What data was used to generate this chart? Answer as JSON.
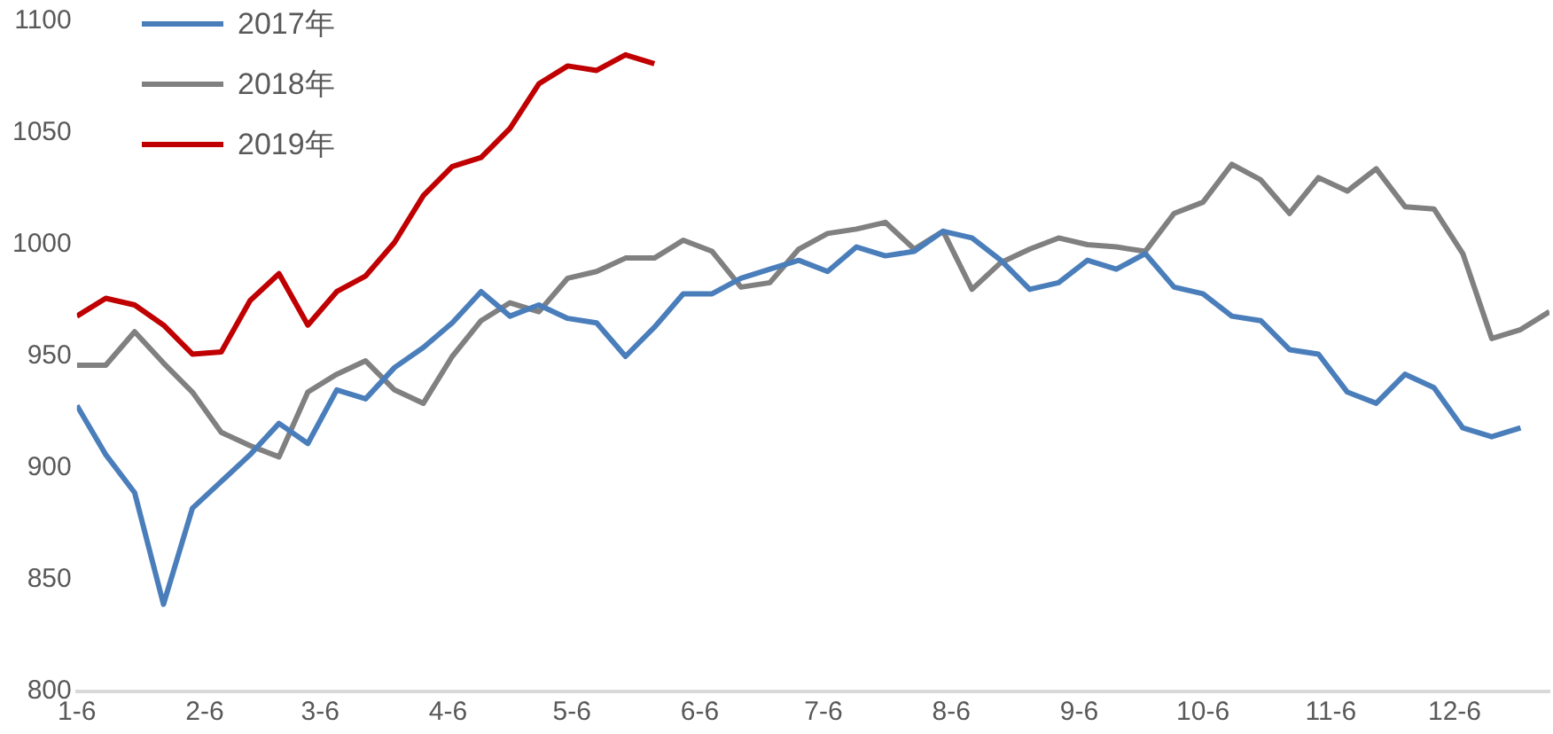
{
  "chart_data": {
    "type": "line",
    "x": [
      "--01-06",
      "--01-13",
      "--01-20",
      "--01-27",
      "--02-03",
      "--02-10",
      "--02-17",
      "--02-24",
      "--03-03",
      "--03-10",
      "--03-17",
      "--03-24",
      "--03-31",
      "--04-07",
      "--04-14",
      "--04-21",
      "--04-28",
      "--05-05",
      "--05-12",
      "--05-19",
      "--05-26",
      "--06-02",
      "--06-09",
      "--06-16",
      "--06-23",
      "--06-30",
      "--07-07",
      "--07-14",
      "--07-21",
      "--07-28",
      "--08-04",
      "--08-11",
      "--08-18",
      "--08-25",
      "--09-01",
      "--09-08",
      "--09-15",
      "--09-22",
      "--09-29",
      "--10-06",
      "--10-13",
      "--10-20",
      "--10-27",
      "--11-03",
      "--11-10",
      "--11-17",
      "--11-24",
      "--12-01",
      "--12-08",
      "--12-15",
      "--12-22",
      "--12-29"
    ],
    "series": [
      {
        "name": "2017年",
        "color": "#4a7ebb",
        "values": [
          928,
          906,
          889,
          839,
          882,
          894,
          906,
          920,
          911,
          935,
          931,
          945,
          954,
          965,
          979,
          968,
          973,
          967,
          965,
          950,
          963,
          978,
          978,
          985,
          989,
          993,
          988,
          999,
          995,
          997,
          1006,
          1003,
          993,
          980,
          983,
          993,
          989,
          996,
          981,
          978,
          968,
          966,
          953,
          951,
          934,
          929,
          942,
          936,
          918,
          914,
          918,
          null
        ]
      },
      {
        "name": "2018年",
        "color": "#808080",
        "values": [
          946,
          946,
          961,
          947,
          934,
          916,
          910,
          905,
          934,
          942,
          948,
          935,
          929,
          950,
          966,
          974,
          970,
          985,
          988,
          994,
          994,
          1002,
          997,
          981,
          983,
          998,
          1005,
          1007,
          1010,
          998,
          1006,
          980,
          992,
          998,
          1003,
          1000,
          999,
          997,
          1014,
          1019,
          1036,
          1029,
          1014,
          1030,
          1024,
          1034,
          1017,
          1016,
          996,
          958,
          962,
          970
        ]
      },
      {
        "name": "2019年",
        "color": "#c00000",
        "values": [
          968,
          976,
          973,
          964,
          951,
          952,
          975,
          987,
          964,
          979,
          986,
          1001,
          1022,
          1035,
          1039,
          1052,
          1072,
          1080,
          1078,
          1085,
          1081,
          null,
          null,
          null,
          null,
          null,
          null,
          null,
          null,
          null,
          null,
          null,
          null,
          null,
          null,
          null,
          null,
          null,
          null,
          null,
          null,
          null,
          null,
          null,
          null,
          null,
          null,
          null,
          null,
          null,
          null,
          null
        ]
      }
    ],
    "xlim": [
      "--01-06",
      "--12-29"
    ],
    "xticks": [
      {
        "value": "--01-06",
        "label": "1-6"
      },
      {
        "value": "--02-06",
        "label": "2-6"
      },
      {
        "value": "--03-06",
        "label": "3-6"
      },
      {
        "value": "--04-06",
        "label": "4-6"
      },
      {
        "value": "--05-06",
        "label": "5-6"
      },
      {
        "value": "--06-06",
        "label": "6-6"
      },
      {
        "value": "--07-06",
        "label": "7-6"
      },
      {
        "value": "--08-06",
        "label": "8-6"
      },
      {
        "value": "--09-06",
        "label": "9-6"
      },
      {
        "value": "--10-06",
        "label": "10-6"
      },
      {
        "value": "--11-06",
        "label": "11-6"
      },
      {
        "value": "--12-06",
        "label": "12-6"
      }
    ],
    "ylim": [
      800,
      1100
    ],
    "yticks": [
      800,
      850,
      900,
      950,
      1000,
      1050,
      1100
    ],
    "legend": "top left",
    "marker": "none",
    "line_style": "solid"
  }
}
